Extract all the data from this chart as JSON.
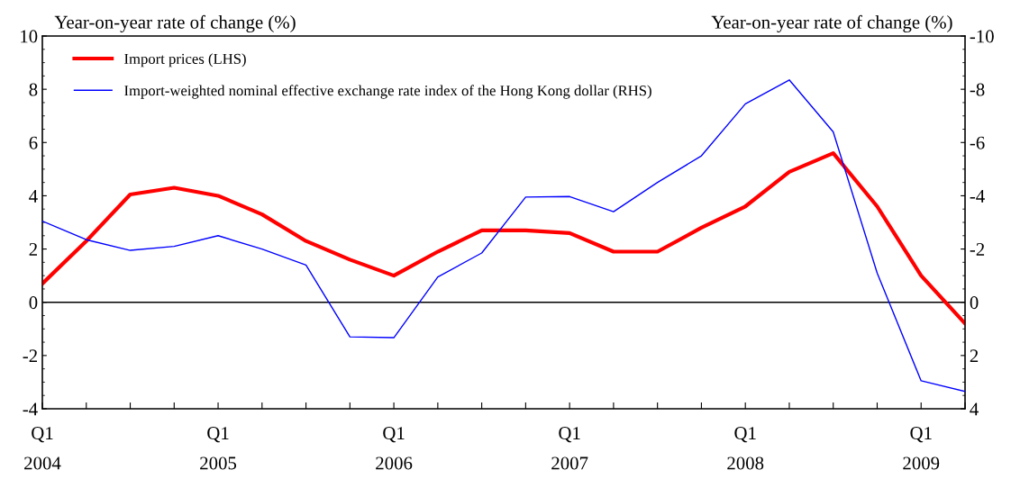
{
  "chart_data": {
    "type": "line",
    "ylabel": "Year-on-year rate of change (%)",
    "y2label": "Year-on-year rate of change (%)",
    "categories": [
      "Q1\n2004",
      null,
      null,
      null,
      "Q1\n2005",
      null,
      null,
      null,
      "Q1\n2006",
      null,
      null,
      null,
      "Q1\n2007",
      null,
      null,
      null,
      "Q1\n2008",
      null,
      null,
      null,
      "Q1\n2009",
      null
    ],
    "series": [
      {
        "name": "Import prices (LHS)",
        "color": "#ff0000",
        "values": [
          0.7,
          2.3,
          4.05,
          4.3,
          4.0,
          3.3,
          2.3,
          1.6,
          1.0,
          1.9,
          2.7,
          2.7,
          2.6,
          1.9,
          1.9,
          2.8,
          3.6,
          4.9,
          5.6,
          3.6,
          1.0,
          -0.8
        ]
      },
      {
        "name": "Import-weighted nominal effective exchange rate index of the Hong Kong dollar (RHS)",
        "color": "#0000ff",
        "axis": "y2",
        "values": [
          -3.05,
          -2.35,
          -1.95,
          -2.1,
          -2.5,
          -2.0,
          -1.4,
          1.3,
          1.33,
          -0.95,
          -1.85,
          -3.95,
          -3.97,
          -3.4,
          -4.5,
          -5.5,
          -7.45,
          -8.35,
          -6.4,
          -1.1,
          2.95,
          3.35
        ]
      }
    ],
    "ylim": [
      -4,
      10
    ],
    "yticks": [
      -4,
      -2,
      0,
      2,
      4,
      6,
      8,
      10
    ],
    "y2lim": [
      4,
      -10
    ],
    "y2ticks": [
      {
        "value": 4,
        "label": "4"
      },
      {
        "value": 2,
        "label": "2"
      },
      {
        "value": 0,
        "label": "0"
      },
      {
        "value": -2,
        "label": "-2"
      },
      {
        "value": -4,
        "label": "-4"
      },
      {
        "value": -6,
        "label": "-6"
      },
      {
        "value": -8,
        "label": "-8"
      },
      {
        "value": -10,
        "label": "-10"
      }
    ],
    "ref_lines": [
      {
        "axis": "y",
        "value": 0,
        "color": "#000000"
      }
    ],
    "grid": false,
    "legend": "top left",
    "marker": "none",
    "line_style": "solid"
  }
}
